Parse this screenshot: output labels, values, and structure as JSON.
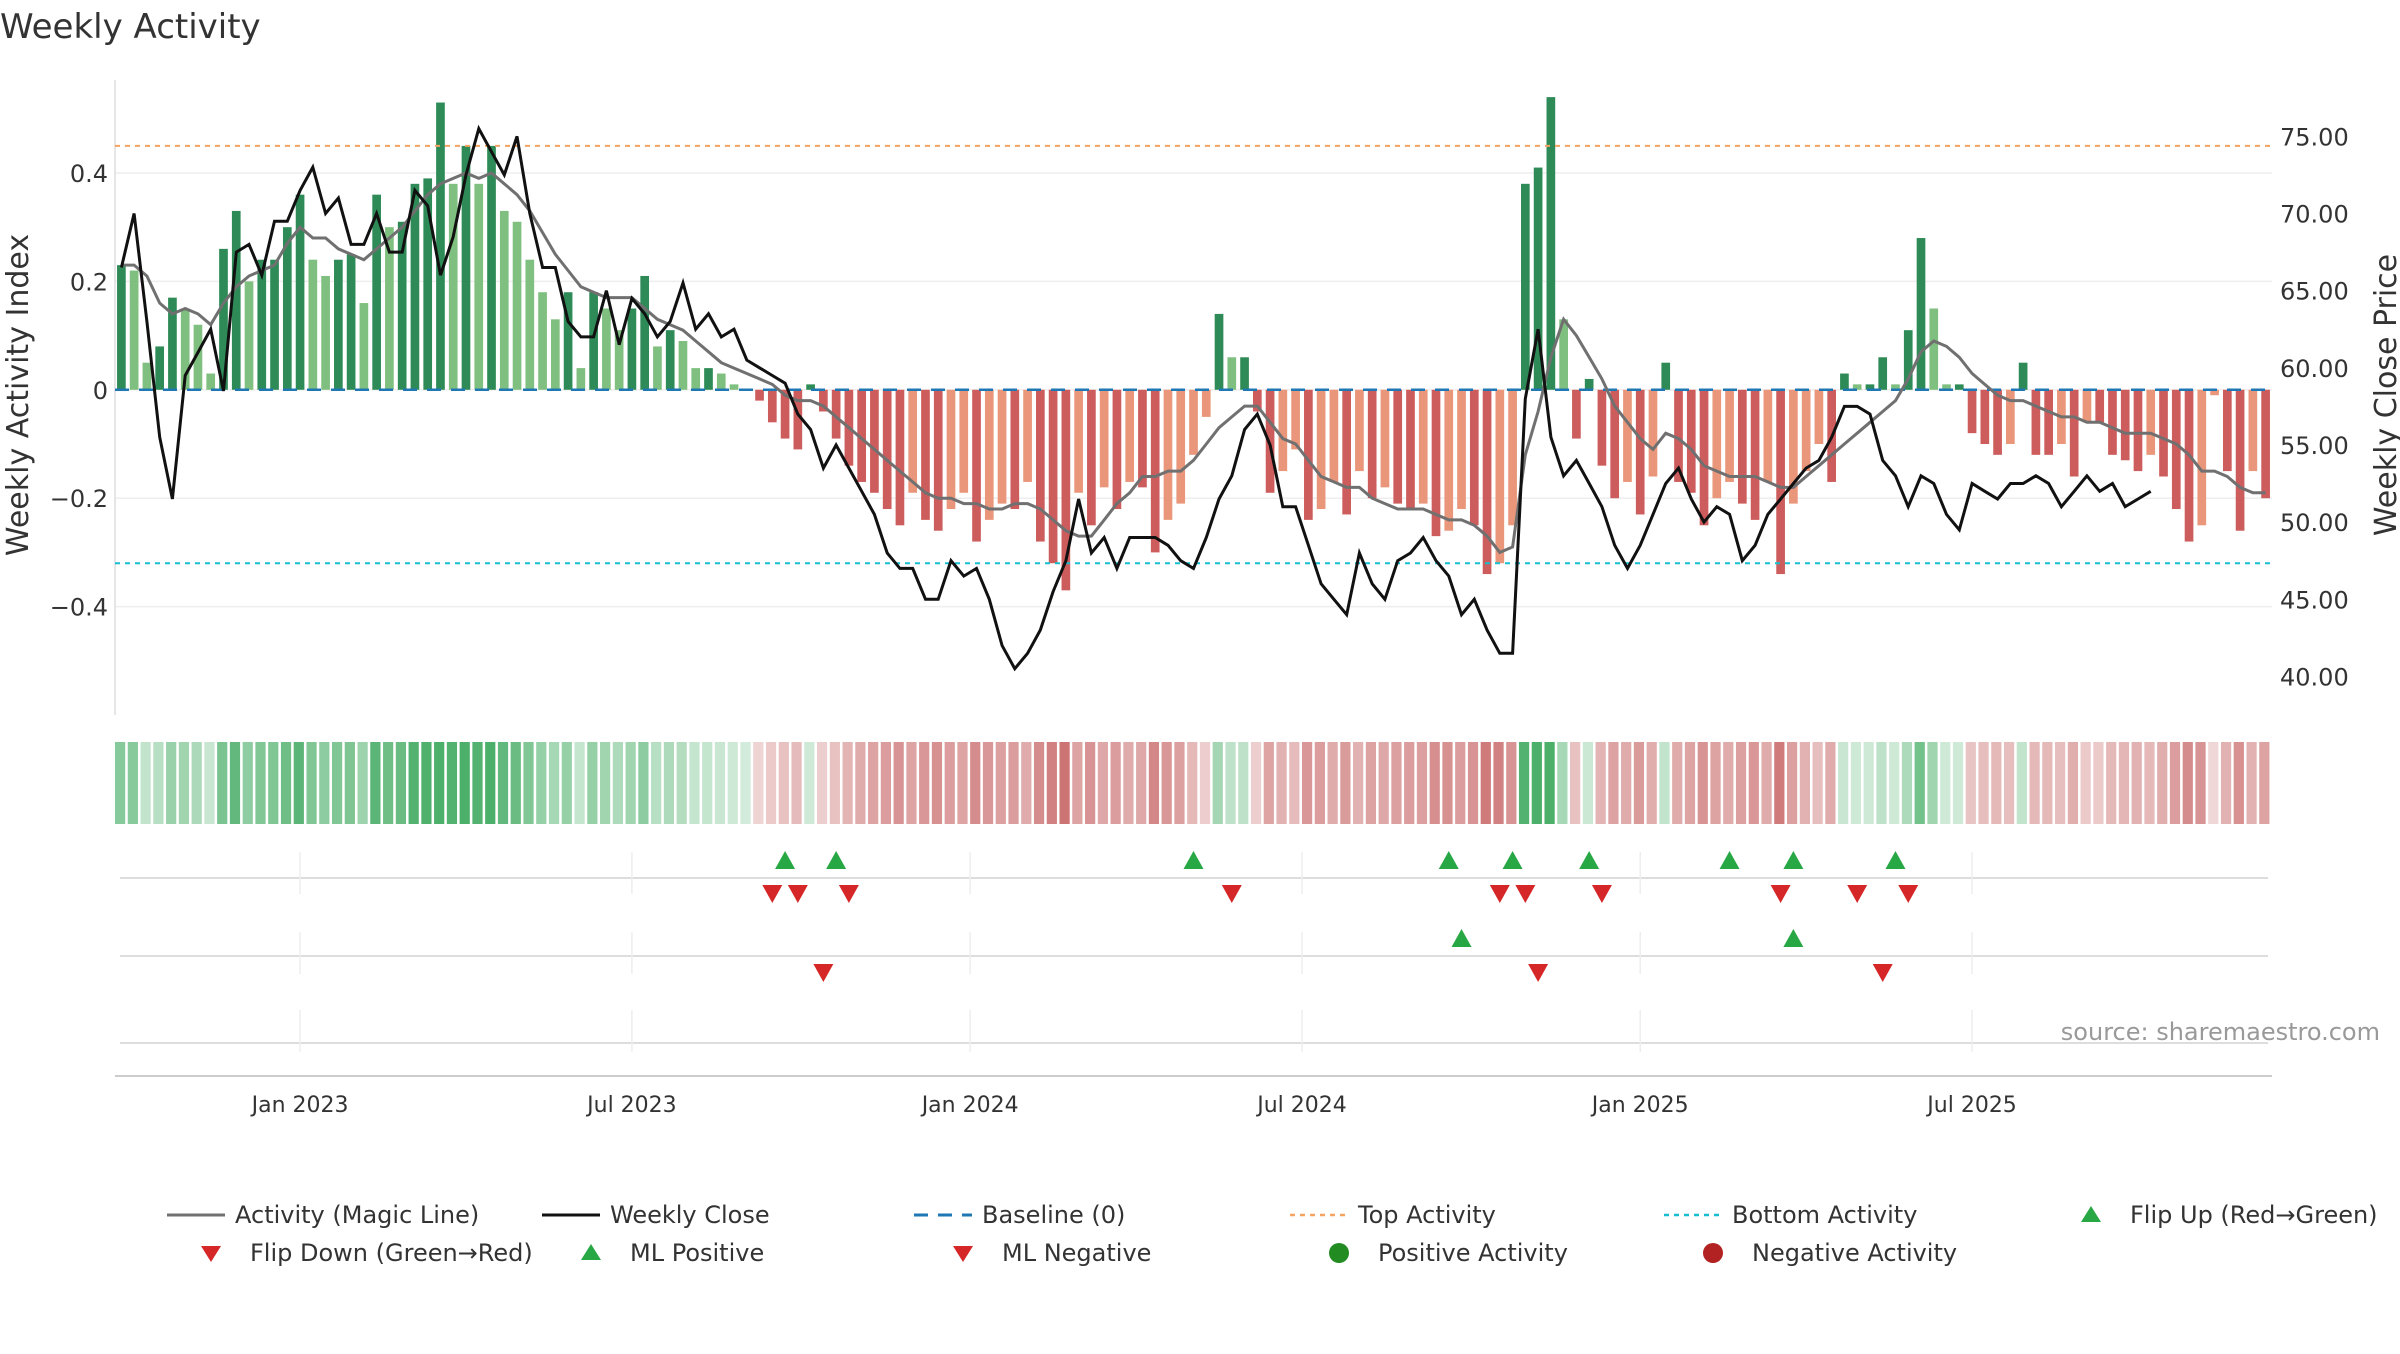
{
  "chart_data": {
    "type": "bar",
    "title": "Weekly Activity",
    "ylabel_left": "Weekly Activity Index",
    "ylabel_right": "Weekly Close Price",
    "ylim_left": [
      -0.6,
      0.59
    ],
    "ylim_right": [
      37.5,
      79.3
    ],
    "left_ticks": [
      {
        "v": 0.4,
        "label": "0.4"
      },
      {
        "v": 0.2,
        "label": "0.2"
      },
      {
        "v": 0,
        "label": "0"
      },
      {
        "v": -0.2,
        "label": "−0.2"
      },
      {
        "v": -0.4,
        "label": "−0.4"
      }
    ],
    "right_ticks": [
      {
        "v": 75,
        "label": "75.00"
      },
      {
        "v": 70,
        "label": "70.00"
      },
      {
        "v": 65,
        "label": "65.00"
      },
      {
        "v": 60,
        "label": "60.00"
      },
      {
        "v": 55,
        "label": "55.00"
      },
      {
        "v": 50,
        "label": "50.00"
      },
      {
        "v": 45,
        "label": "45.00"
      },
      {
        "v": 40,
        "label": "40.00"
      }
    ],
    "x_ticks": [
      {
        "label": "Jan 2023",
        "week": 14
      },
      {
        "label": "Jul 2023",
        "week": 40
      },
      {
        "label": "Jan 2024",
        "week": 66.5
      },
      {
        "label": "Jul 2024",
        "week": 92.5
      },
      {
        "label": "Jan 2025",
        "week": 119
      },
      {
        "label": "Jul 2025",
        "week": 145
      }
    ],
    "top_activity": 0.45,
    "bottom_activity": -0.32,
    "activity": [
      0.23,
      0.22,
      0.05,
      0.08,
      0.17,
      0.15,
      0.12,
      0.03,
      0.26,
      0.33,
      0.2,
      0.24,
      0.24,
      0.3,
      0.36,
      0.24,
      0.21,
      0.24,
      0.25,
      0.16,
      0.36,
      0.3,
      0.31,
      0.38,
      0.39,
      0.53,
      0.38,
      0.45,
      0.38,
      0.45,
      0.33,
      0.31,
      0.24,
      0.18,
      0.13,
      0.18,
      0.04,
      0.18,
      0.15,
      0.11,
      0.15,
      0.21,
      0.08,
      0.11,
      0.09,
      0.04,
      0.04,
      0.03,
      0.01,
      0.0,
      -0.02,
      -0.06,
      -0.09,
      -0.11,
      0.01,
      -0.04,
      -0.09,
      -0.14,
      -0.17,
      -0.19,
      -0.22,
      -0.25,
      -0.19,
      -0.24,
      -0.26,
      -0.22,
      -0.19,
      -0.28,
      -0.24,
      -0.21,
      -0.22,
      -0.17,
      -0.28,
      -0.32,
      -0.37,
      -0.19,
      -0.25,
      -0.18,
      -0.22,
      -0.17,
      -0.18,
      -0.3,
      -0.24,
      -0.21,
      -0.12,
      -0.05,
      0.14,
      0.06,
      0.06,
      -0.04,
      -0.19,
      -0.15,
      -0.11,
      -0.24,
      -0.22,
      -0.17,
      -0.23,
      -0.15,
      -0.2,
      -0.18,
      -0.21,
      -0.22,
      -0.21,
      -0.27,
      -0.26,
      -0.22,
      -0.25,
      -0.34,
      -0.32,
      -0.25,
      0.38,
      0.41,
      0.54,
      0.13,
      -0.09,
      0.02,
      -0.14,
      -0.2,
      -0.17,
      -0.23,
      -0.16,
      0.05,
      -0.17,
      -0.19,
      -0.25,
      -0.2,
      -0.17,
      -0.21,
      -0.24,
      -0.17,
      -0.34,
      -0.21,
      -0.15,
      -0.1,
      -0.17,
      0.03,
      0.01,
      0.01,
      0.06,
      0.01,
      0.11,
      0.28,
      0.15,
      0.01,
      0.01,
      -0.08,
      -0.1,
      -0.12,
      -0.1,
      0.05,
      -0.12,
      -0.12,
      -0.1,
      -0.16,
      -0.06,
      -0.06,
      -0.12,
      -0.13,
      -0.15,
      -0.12,
      -0.16,
      -0.22,
      -0.28,
      -0.25,
      -0.01,
      -0.15,
      -0.26,
      -0.15,
      -0.2
    ],
    "magic_line": [
      0.23,
      0.23,
      0.21,
      0.16,
      0.14,
      0.15,
      0.14,
      0.12,
      0.16,
      0.19,
      0.21,
      0.22,
      0.23,
      0.27,
      0.3,
      0.28,
      0.28,
      0.26,
      0.25,
      0.24,
      0.26,
      0.28,
      0.3,
      0.33,
      0.36,
      0.38,
      0.39,
      0.4,
      0.39,
      0.4,
      0.38,
      0.36,
      0.33,
      0.29,
      0.25,
      0.22,
      0.19,
      0.18,
      0.17,
      0.17,
      0.17,
      0.15,
      0.13,
      0.12,
      0.11,
      0.09,
      0.07,
      0.05,
      0.04,
      0.03,
      0.02,
      0.01,
      -0.01,
      -0.02,
      -0.02,
      -0.03,
      -0.05,
      -0.07,
      -0.09,
      -0.11,
      -0.13,
      -0.15,
      -0.17,
      -0.19,
      -0.2,
      -0.2,
      -0.21,
      -0.21,
      -0.22,
      -0.22,
      -0.21,
      -0.21,
      -0.22,
      -0.24,
      -0.26,
      -0.27,
      -0.27,
      -0.24,
      -0.21,
      -0.19,
      -0.16,
      -0.16,
      -0.15,
      -0.15,
      -0.13,
      -0.1,
      -0.07,
      -0.05,
      -0.03,
      -0.03,
      -0.06,
      -0.09,
      -0.1,
      -0.13,
      -0.16,
      -0.17,
      -0.18,
      -0.18,
      -0.2,
      -0.21,
      -0.22,
      -0.22,
      -0.22,
      -0.23,
      -0.24,
      -0.24,
      -0.25,
      -0.27,
      -0.3,
      -0.29,
      -0.12,
      -0.04,
      0.06,
      0.13,
      0.1,
      0.06,
      0.02,
      -0.03,
      -0.06,
      -0.09,
      -0.11,
      -0.08,
      -0.09,
      -0.11,
      -0.14,
      -0.15,
      -0.16,
      -0.16,
      -0.16,
      -0.17,
      -0.18,
      -0.18,
      -0.16,
      -0.14,
      -0.12,
      -0.1,
      -0.08,
      -0.06,
      -0.04,
      -0.02,
      0.02,
      0.07,
      0.09,
      0.08,
      0.06,
      0.03,
      0.01,
      -0.01,
      -0.02,
      -0.02,
      -0.03,
      -0.04,
      -0.05,
      -0.05,
      -0.06,
      -0.06,
      -0.07,
      -0.08,
      -0.08,
      -0.08,
      -0.09,
      -0.1,
      -0.12,
      -0.15,
      -0.15,
      -0.16,
      -0.18,
      -0.19,
      -0.19
    ],
    "weekly_close": [
      66.5,
      70.0,
      63.0,
      55.5,
      51.5,
      59.5,
      61.0,
      62.5,
      58.5,
      67.5,
      68.0,
      66.0,
      69.5,
      69.5,
      71.5,
      73.0,
      70.0,
      71.0,
      68.0,
      68.0,
      70.0,
      67.5,
      67.5,
      71.5,
      70.5,
      66.0,
      68.5,
      72.5,
      75.5,
      74.0,
      72.5,
      75.0,
      70.0,
      66.5,
      66.5,
      63.0,
      62.0,
      62.0,
      65.0,
      61.5,
      64.5,
      63.5,
      62.0,
      63.0,
      65.5,
      62.5,
      63.5,
      62.0,
      62.5,
      60.5,
      60.0,
      59.5,
      59.0,
      57.0,
      56.0,
      53.5,
      55.0,
      53.5,
      52.0,
      50.5,
      48.0,
      47.0,
      47.0,
      45.0,
      45.0,
      47.5,
      46.5,
      47.0,
      45.0,
      42.0,
      40.5,
      41.5,
      43.0,
      45.5,
      47.5,
      51.5,
      48.0,
      49.0,
      47.0,
      49.0,
      49.0,
      49.0,
      48.5,
      47.5,
      47.0,
      49.0,
      51.5,
      53.0,
      56.0,
      57.0,
      55.0,
      51.0,
      51.0,
      48.5,
      46.0,
      45.0,
      44.0,
      48.0,
      46.0,
      45.0,
      47.5,
      48.0,
      49.0,
      47.5,
      46.5,
      44.0,
      45.0,
      43.0,
      41.5,
      41.5,
      58.0,
      62.5,
      55.5,
      53.0,
      54.0,
      52.5,
      51.0,
      48.5,
      47.0,
      48.5,
      50.5,
      52.5,
      53.5,
      51.5,
      50.0,
      51.0,
      50.5,
      47.5,
      48.5,
      50.5,
      51.5,
      52.5,
      53.5,
      54.0,
      55.5,
      57.5,
      57.5,
      57.0,
      54.0,
      53.0,
      51.0,
      53.0,
      52.5,
      50.5,
      49.5,
      52.5,
      52.0,
      51.5,
      52.5,
      52.5,
      53.0,
      52.5,
      51.0,
      52.0,
      53.0,
      52.0,
      52.5,
      51.0,
      51.5,
      52.0
    ],
    "heat_strip": {
      "description": "Weekly activity heat strip (one cell per week), colour follows the activity sign and strength"
    },
    "signal_rows": [
      {
        "name": "row1",
        "flip_up_weeks": [
          52,
          56,
          84,
          104,
          109,
          115,
          126,
          131,
          139
        ],
        "flip_down_weeks": [
          51,
          53,
          57,
          87,
          108,
          110,
          116,
          130,
          136,
          140
        ]
      },
      {
        "name": "row2",
        "ml_positive_weeks": [
          105,
          131
        ],
        "ml_negative_weeks": [
          55,
          111,
          138
        ]
      },
      {
        "name": "row3",
        "positive_activity_weeks": [],
        "negative_activity_weeks": []
      }
    ],
    "legend": [
      {
        "key": "magic",
        "label": "Activity (Magic Line)"
      },
      {
        "key": "close",
        "label": "Weekly Close"
      },
      {
        "key": "baseline",
        "label": "Baseline (0)"
      },
      {
        "key": "top",
        "label": "Top Activity"
      },
      {
        "key": "bottom",
        "label": "Bottom Activity"
      },
      {
        "key": "flipup",
        "label": "Flip Up (Red→Green)"
      },
      {
        "key": "flipdown",
        "label": "Flip Down (Green→Red)"
      },
      {
        "key": "mlpos",
        "label": "ML Positive"
      },
      {
        "key": "mlneg",
        "label": "ML Negative"
      },
      {
        "key": "posact",
        "label": "Positive Activity"
      },
      {
        "key": "negact",
        "label": "Negative Activity"
      }
    ],
    "source": "source: sharemaestro.com",
    "colors": {
      "bar_pos_strong": "#2e8b57",
      "bar_pos_weak": "#7fbf7f",
      "bar_neg_strong": "#cd5c5c",
      "bar_neg_weak": "#e9967a",
      "magic_line": "#707070",
      "close_line": "#111111",
      "baseline": "#1f77b4",
      "top_line": "#f4a460",
      "bottom_line": "#17becf",
      "up_marker": "#28a745",
      "down_marker": "#d62728",
      "pos_dot": "#228b22",
      "neg_dot": "#b22222"
    }
  }
}
